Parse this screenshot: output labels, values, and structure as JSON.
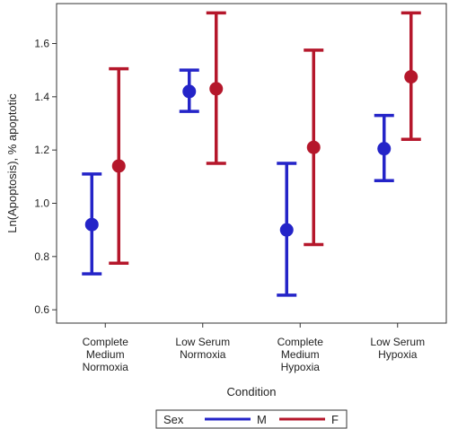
{
  "chart_data": {
    "type": "scatter",
    "title": "",
    "xlabel": "Condition",
    "ylabel": "Ln(Apoptosis), % apoptotic",
    "ylim": [
      0.55,
      1.75
    ],
    "yticks": [
      0.6,
      0.8,
      1.0,
      1.2,
      1.4,
      1.6
    ],
    "grid": false,
    "legend_placement": "bottom-center",
    "legend_title": "Sex",
    "categories": [
      [
        "Complete",
        "Medium",
        "Normoxia"
      ],
      [
        "Low Serum",
        "Normoxia"
      ],
      [
        "Complete",
        "Medium",
        "Hypoxia"
      ],
      [
        "Low Serum",
        "Hypoxia"
      ]
    ],
    "series": [
      {
        "name": "M",
        "color": "#2424c8",
        "values": [
          0.92,
          1.42,
          0.9,
          1.205
        ],
        "lower": [
          0.735,
          1.345,
          0.655,
          1.085
        ],
        "upper": [
          1.11,
          1.5,
          1.15,
          1.33
        ]
      },
      {
        "name": "F",
        "color": "#b5172b",
        "values": [
          1.14,
          1.43,
          1.21,
          1.475
        ],
        "lower": [
          0.775,
          1.15,
          0.845,
          1.24
        ],
        "upper": [
          1.505,
          1.715,
          1.575,
          1.715
        ]
      }
    ]
  }
}
